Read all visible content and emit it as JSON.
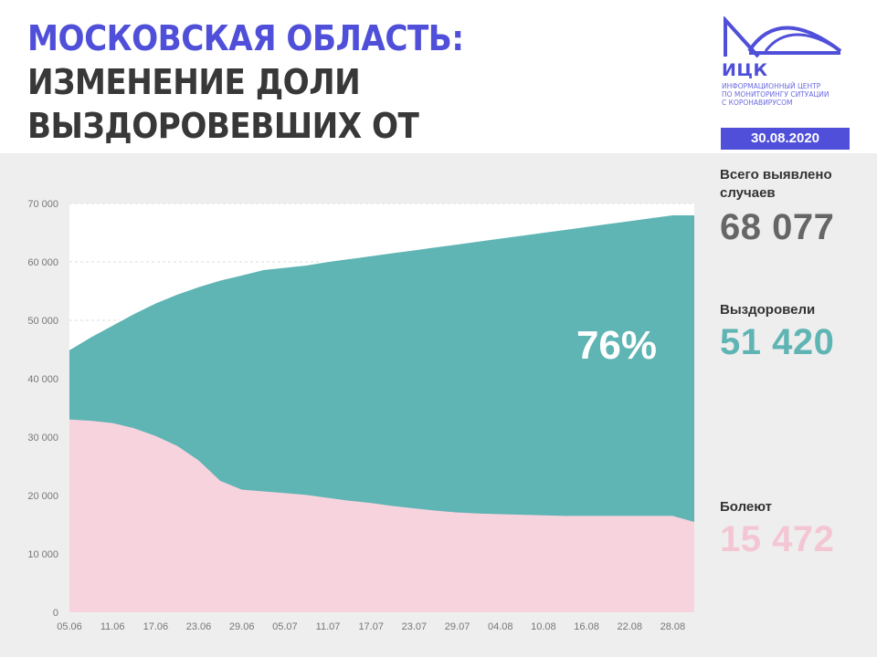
{
  "header": {
    "title_accent": "Московская область:",
    "title_rest": " изменение доли выздоровевших от коронавируса"
  },
  "logo": {
    "name": "ИЦК",
    "subtitle": "Информационный центр\nпо мониторингу ситуации\nс коронавирусом",
    "icon": "bridge-waves-logo-icon"
  },
  "date": "30.08.2020",
  "stats": {
    "total_label": "Всего выявлено случаев",
    "total_value": "68 077",
    "recovered_label": "Выздоровели",
    "recovered_value": "51 420",
    "sick_label": "Болеют",
    "sick_value": "15 472"
  },
  "colors": {
    "accent": "#4f4fd9",
    "recovered": "#5fb4b4",
    "sick": "#f7d3de",
    "panel": "#eeeeee"
  },
  "chart_data": {
    "type": "area",
    "title": "",
    "xlabel": "",
    "ylabel": "",
    "ylim": [
      0,
      70000
    ],
    "grid": true,
    "annotation": "76%",
    "y_ticks": [
      "0",
      "10 000",
      "20 000",
      "30 000",
      "40 000",
      "50 000",
      "60 000",
      "70 000"
    ],
    "x": [
      "05.06",
      "08.06",
      "11.06",
      "14.06",
      "17.06",
      "20.06",
      "23.06",
      "26.06",
      "29.06",
      "02.07",
      "05.07",
      "08.07",
      "11.07",
      "14.07",
      "17.07",
      "20.07",
      "23.07",
      "26.07",
      "29.07",
      "01.08",
      "04.08",
      "07.08",
      "10.08",
      "13.08",
      "16.08",
      "19.08",
      "22.08",
      "25.08",
      "28.08",
      "30.08"
    ],
    "x_tick_labels": [
      "05.06",
      "11.06",
      "17.06",
      "23.06",
      "29.06",
      "05.07",
      "11.07",
      "17.07",
      "23.07",
      "29.07",
      "04.08",
      "10.08",
      "16.08",
      "22.08",
      "28.08"
    ],
    "series": [
      {
        "name": "Болеют",
        "color": "#f7d3de",
        "values": [
          33000,
          32800,
          32400,
          31500,
          30200,
          28500,
          26000,
          22500,
          21000,
          20700,
          20400,
          20100,
          19600,
          19100,
          18700,
          18200,
          17800,
          17400,
          17100,
          16900,
          16800,
          16700,
          16600,
          16500,
          16500,
          16500,
          16500,
          16500,
          16500,
          15472
        ]
      },
      {
        "name": "Всего выявлено случаев",
        "color": "#5fb4b4",
        "values": [
          45000,
          47200,
          49200,
          51200,
          53000,
          54500,
          55800,
          56900,
          57800,
          58700,
          59100,
          59500,
          60100,
          60600,
          61100,
          61600,
          62100,
          62600,
          63100,
          63600,
          64100,
          64600,
          65100,
          65600,
          66100,
          66600,
          67100,
          67600,
          68077,
          68077
        ]
      }
    ]
  }
}
